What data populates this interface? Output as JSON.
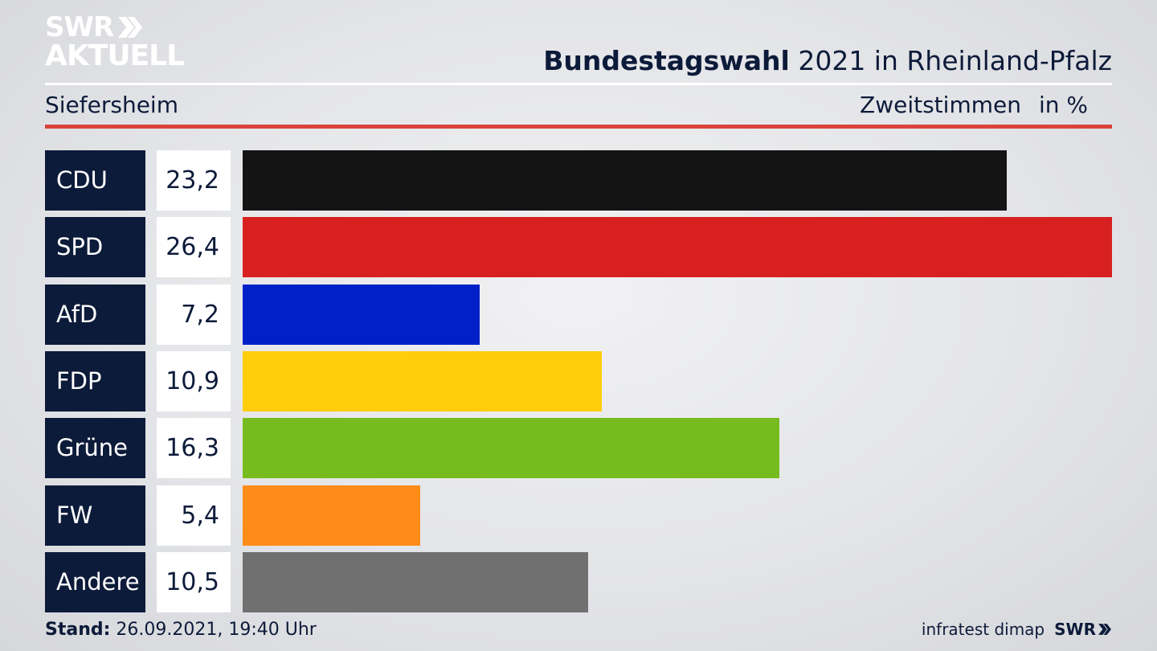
{
  "logo": {
    "line1": "SWR",
    "line2": "AKTUELL"
  },
  "header": {
    "title_bold": "Bundestagswahl",
    "title_rest": " 2021 in Rheinland-Pfalz"
  },
  "subheader": {
    "place": "Siefersheim",
    "metric": "Zweitstimmen",
    "unit": "in %"
  },
  "footer": {
    "stand_label": "Stand:",
    "stand_value": " 26.09.2021, 19:40 Uhr",
    "source": "infratest dimap",
    "brand": "SWR"
  },
  "chart_data": {
    "type": "bar",
    "categories": [
      "CDU",
      "SPD",
      "AfD",
      "FDP",
      "Grüne",
      "FW",
      "Andere"
    ],
    "values": [
      23.2,
      26.4,
      7.2,
      10.9,
      16.3,
      5.4,
      10.5
    ],
    "labels": [
      "23,2",
      "26,4",
      "7,2",
      "10,9",
      "16,3",
      "5,4",
      "10,5"
    ],
    "colors": [
      "#141414",
      "#d82020",
      "#0021c8",
      "#fecd0c",
      "#77bc1f",
      "#ff8c19",
      "#707070"
    ],
    "ylabel": "in %"
  }
}
